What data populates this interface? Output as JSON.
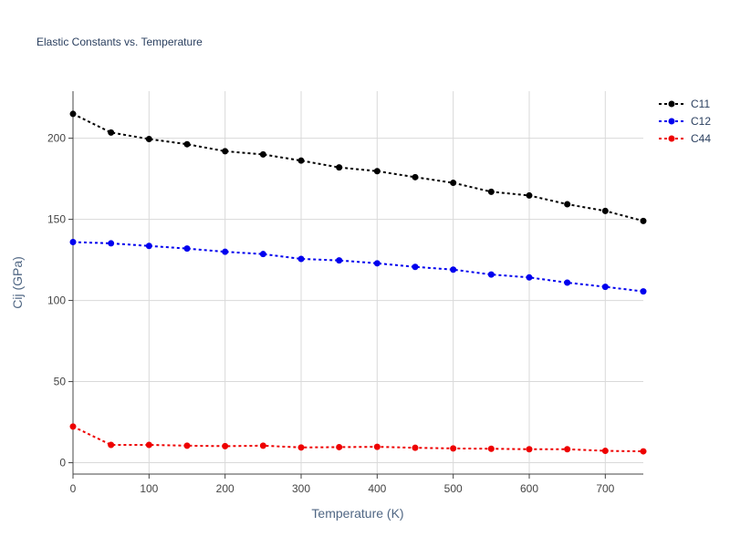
{
  "chart_data": {
    "type": "line",
    "title": "Elastic Constants vs. Temperature",
    "xlabel": "Temperature (K)",
    "ylabel": "Cij (GPa)",
    "xlim": [
      0,
      750
    ],
    "ylim": [
      -7,
      229
    ],
    "x_ticks": [
      0,
      100,
      200,
      300,
      400,
      500,
      600,
      700
    ],
    "y_ticks": [
      0,
      50,
      100,
      150,
      200
    ],
    "grid": true,
    "legend_position": "top-right",
    "x": [
      0,
      50,
      100,
      150,
      200,
      250,
      300,
      350,
      400,
      450,
      500,
      550,
      600,
      650,
      700,
      750
    ],
    "series": [
      {
        "name": "C11",
        "color": "#000000",
        "values": [
          215,
          203.5,
          199.5,
          196.3,
          192,
          190,
          186.2,
          182,
          179.7,
          176,
          172.5,
          167,
          164.7,
          159.3,
          155.2,
          149
        ]
      },
      {
        "name": "C12",
        "color": "#0000ee",
        "values": [
          136,
          135.2,
          133.6,
          132,
          130,
          128.6,
          125.6,
          124.7,
          122.9,
          120.7,
          119,
          116,
          114.2,
          111,
          108.4,
          105.6
        ]
      },
      {
        "name": "C44",
        "color": "#ee0000",
        "values": [
          22.3,
          11,
          11,
          10.5,
          10.2,
          10.5,
          9.4,
          9.6,
          9.8,
          9.2,
          8.8,
          8.6,
          8.3,
          8.3,
          7.3,
          7
        ]
      }
    ]
  }
}
